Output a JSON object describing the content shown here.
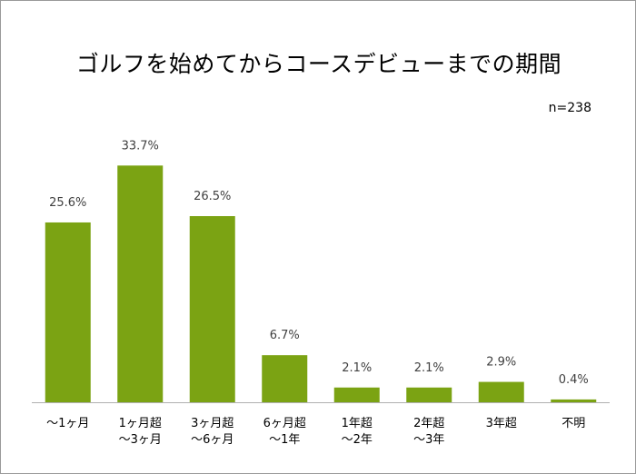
{
  "chart_data": {
    "type": "bar",
    "title": "ゴルフを始めてからコースデビューまでの期間",
    "annotation": "n=238",
    "categories": [
      [
        "～1ヶ月"
      ],
      [
        "1ヶ月超",
        "～3ヶ月"
      ],
      [
        "3ヶ月超",
        "～6ヶ月"
      ],
      [
        "6ヶ月超",
        "～1年"
      ],
      [
        "1年超",
        "～2年"
      ],
      [
        "2年超",
        "～3年"
      ],
      [
        "3年超"
      ],
      [
        "不明"
      ]
    ],
    "values": [
      25.6,
      33.7,
      26.5,
      6.7,
      2.1,
      2.1,
      2.9,
      0.4
    ],
    "value_labels": [
      "25.6%",
      "33.7%",
      "26.5%",
      "6.7%",
      "2.1%",
      "2.1%",
      "2.9%",
      "0.4%"
    ],
    "ylim": [
      0,
      45
    ],
    "grid": false,
    "legend": "none",
    "xlabel": "",
    "ylabel": "",
    "colors": {
      "bar": "#7ba313",
      "axis": "#b0b0b0",
      "text": "#404040"
    }
  }
}
